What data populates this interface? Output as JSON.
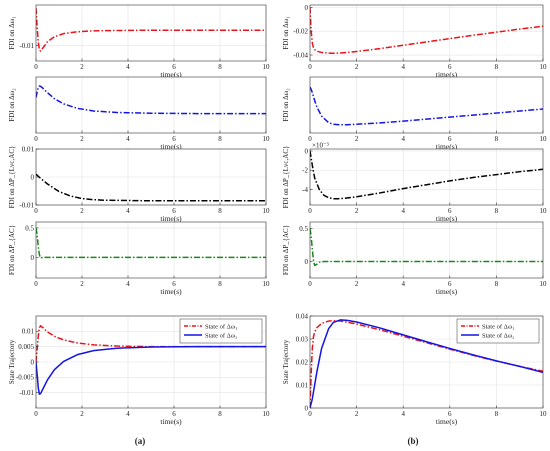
{
  "captions": {
    "left": "(a)",
    "right": "(b)"
  },
  "charts": [
    {
      "id": "a1",
      "type": "line",
      "xlabel": "time(s)",
      "ylabel": "FDI on Δω₁",
      "xlim": [
        0,
        10
      ],
      "ylim": [
        -0.015,
        0.003
      ],
      "xticks": [
        "0",
        "2",
        "4",
        "6",
        "8",
        "10"
      ],
      "xtick_values": [
        0,
        2,
        4,
        6,
        8,
        10
      ],
      "yticks": [
        "-0.01"
      ],
      "ytick_values": [
        -0.01
      ],
      "exponent": "",
      "grid": true,
      "series": [
        {
          "color": "#e8141b",
          "dash": "dashdot",
          "x": [
            0,
            0.05,
            0.1,
            0.15,
            0.2,
            0.3,
            0.5,
            0.8,
            1.2,
            1.8,
            2.5,
            3.5,
            5,
            7,
            10
          ],
          "y": [
            0.002,
            -0.004,
            -0.009,
            -0.0115,
            -0.0118,
            -0.0108,
            -0.0088,
            -0.0072,
            -0.0062,
            -0.0056,
            -0.0053,
            -0.0052,
            -0.0051,
            -0.0051,
            -0.0051
          ]
        }
      ],
      "legend": []
    },
    {
      "id": "b1",
      "type": "line",
      "xlabel": "time(s)",
      "ylabel": "FDI on Δω₁",
      "xlim": [
        0,
        10
      ],
      "ylim": [
        -0.045,
        0.002
      ],
      "xticks": [
        "0",
        "2",
        "4",
        "6",
        "8",
        "10"
      ],
      "xtick_values": [
        0,
        2,
        4,
        6,
        8,
        10
      ],
      "yticks": [
        "-0.04",
        "-0.02",
        "0"
      ],
      "ytick_values": [
        -0.04,
        -0.02,
        0
      ],
      "exponent": "",
      "grid": true,
      "series": [
        {
          "color": "#e8141b",
          "dash": "dashdot",
          "x": [
            0,
            0.05,
            0.1,
            0.15,
            0.2,
            0.3,
            0.5,
            0.8,
            1.0,
            1.3,
            1.6,
            2,
            3,
            4,
            5,
            6,
            7,
            8,
            9,
            10
          ],
          "y": [
            0,
            -0.02,
            -0.03,
            -0.034,
            -0.0355,
            -0.0368,
            -0.0378,
            -0.0384,
            -0.0385,
            -0.0383,
            -0.0378,
            -0.037,
            -0.0346,
            -0.0318,
            -0.029,
            -0.0262,
            -0.0234,
            -0.0208,
            -0.0182,
            -0.0158
          ]
        }
      ],
      "legend": []
    },
    {
      "id": "a2",
      "type": "line",
      "xlabel": "time(s)",
      "ylabel": "FDI on Δω₂",
      "xlim": [
        0,
        10
      ],
      "ylim": [
        -0.003,
        0.012
      ],
      "xticks": [
        "0",
        "2",
        "4",
        "6",
        "8",
        "10"
      ],
      "xtick_values": [
        0,
        2,
        4,
        6,
        8,
        10
      ],
      "yticks": [],
      "ytick_values": [],
      "exponent": "",
      "grid": true,
      "series": [
        {
          "color": "#1414e6",
          "dash": "dashdot",
          "x": [
            0,
            0.05,
            0.1,
            0.15,
            0.2,
            0.3,
            0.5,
            0.8,
            1.2,
            1.8,
            2.5,
            3.5,
            5,
            7,
            10
          ],
          "y": [
            0.0065,
            0.008,
            0.0092,
            0.0096,
            0.0095,
            0.009,
            0.0078,
            0.0062,
            0.0048,
            0.0036,
            0.0029,
            0.0025,
            0.0023,
            0.0022,
            0.0022
          ]
        }
      ],
      "legend": []
    },
    {
      "id": "b2",
      "type": "line",
      "xlabel": "time(s)",
      "ylabel": "FDI on Δω₂",
      "xlim": [
        0,
        10
      ],
      "ylim": [
        -0.045,
        0.005
      ],
      "xticks": [
        "0",
        "2",
        "4",
        "6",
        "8",
        "10"
      ],
      "xtick_values": [
        0,
        2,
        4,
        6,
        8,
        10
      ],
      "yticks": [],
      "ytick_values": [],
      "exponent": "",
      "grid": true,
      "series": [
        {
          "color": "#1414e6",
          "dash": "dashdot",
          "x": [
            0,
            0.05,
            0.1,
            0.2,
            0.3,
            0.5,
            0.8,
            1.0,
            1.3,
            1.6,
            2,
            3,
            4,
            5,
            6,
            7,
            8,
            9,
            10
          ],
          "y": [
            -0.004,
            -0.006,
            -0.009,
            -0.016,
            -0.022,
            -0.03,
            -0.0358,
            -0.0372,
            -0.0377,
            -0.0376,
            -0.0372,
            -0.036,
            -0.0344,
            -0.0326,
            -0.0308,
            -0.029,
            -0.0272,
            -0.0254,
            -0.0236
          ]
        }
      ],
      "legend": []
    },
    {
      "id": "a3",
      "type": "line",
      "xlabel": "time(s)",
      "ylabel": "FDI on ΔP_{Lvc,AC}",
      "xlim": [
        0,
        10
      ],
      "ylim": [
        -0.01,
        0.01
      ],
      "xticks": [
        "0",
        "2",
        "4",
        "6",
        "8",
        "10"
      ],
      "xtick_values": [
        0,
        2,
        4,
        6,
        8,
        10
      ],
      "yticks": [
        "-0.01",
        "0",
        "0.01"
      ],
      "ytick_values": [
        -0.01,
        0,
        0.01
      ],
      "exponent": "",
      "grid": true,
      "series": [
        {
          "color": "#000000",
          "dash": "dashdot",
          "x": [
            0,
            0.2,
            0.5,
            1.0,
            1.5,
            2,
            2.5,
            3,
            4,
            5,
            6,
            8,
            10
          ],
          "y": [
            0.001,
            -0.0005,
            -0.0025,
            -0.0052,
            -0.0068,
            -0.0077,
            -0.0081,
            -0.0083,
            -0.0084,
            -0.0085,
            -0.0085,
            -0.0085,
            -0.0085
          ]
        }
      ],
      "legend": []
    },
    {
      "id": "b3",
      "type": "line",
      "xlabel": "time(s)",
      "ylabel": "FDI on ΔP_{Lvc,AC}",
      "xlim": [
        0,
        10
      ],
      "ylim": [
        -5.6,
        0.2
      ],
      "xticks": [
        "0",
        "2",
        "4",
        "6",
        "8",
        "10"
      ],
      "xtick_values": [
        0,
        2,
        4,
        6,
        8,
        10
      ],
      "yticks": [
        "-4",
        "-2",
        "0"
      ],
      "ytick_values": [
        -4,
        -2,
        0
      ],
      "exponent": "×10⁻³",
      "grid": true,
      "series": [
        {
          "color": "#000000",
          "dash": "dashdot",
          "x": [
            0,
            0.1,
            0.2,
            0.4,
            0.6,
            0.8,
            1.0,
            1.2,
            1.5,
            2,
            3,
            4,
            5,
            6,
            7,
            8,
            9,
            10
          ],
          "y": [
            0,
            -1.5,
            -2.8,
            -4.0,
            -4.6,
            -4.85,
            -4.95,
            -4.95,
            -4.9,
            -4.75,
            -4.35,
            -3.9,
            -3.5,
            -3.1,
            -2.75,
            -2.45,
            -2.15,
            -1.9
          ]
        }
      ],
      "legend": []
    },
    {
      "id": "a4",
      "type": "line",
      "xlabel": "time(s)",
      "ylabel": "FDI on ΔP_{AC}",
      "xlim": [
        0,
        10
      ],
      "ylim": [
        -0.35,
        0.6
      ],
      "xticks": [
        "0",
        "2",
        "4",
        "6",
        "8",
        "10"
      ],
      "xtick_values": [
        0,
        2,
        4,
        6,
        8,
        10
      ],
      "yticks": [
        "0",
        "0.5"
      ],
      "ytick_values": [
        0,
        0.5
      ],
      "exponent": "",
      "grid": true,
      "series": [
        {
          "color": "#178a17",
          "dash": "dashdot",
          "x": [
            0,
            0.05,
            0.1,
            0.15,
            0.2,
            0.25,
            0.3,
            0.5,
            1,
            2,
            4,
            6,
            8,
            10
          ],
          "y": [
            0.5,
            0.38,
            0.18,
            0.04,
            -0.01,
            -0.005,
            0,
            0,
            0,
            0,
            0,
            0,
            0,
            0
          ]
        }
      ],
      "legend": []
    },
    {
      "id": "b4",
      "type": "line",
      "xlabel": "time(s)",
      "ylabel": "FDI on ΔP_{AC}",
      "xlim": [
        0,
        10
      ],
      "ylim": [
        -0.25,
        0.6
      ],
      "xticks": [
        "0",
        "2",
        "4",
        "6",
        "8",
        "10"
      ],
      "xtick_values": [
        0,
        2,
        4,
        6,
        8,
        10
      ],
      "yticks": [
        "0",
        "0.5"
      ],
      "ytick_values": [
        0,
        0.5
      ],
      "exponent": "",
      "grid": true,
      "series": [
        {
          "color": "#178a17",
          "dash": "dashdot",
          "x": [
            0,
            0.05,
            0.1,
            0.15,
            0.2,
            0.3,
            0.4,
            0.6,
            1,
            2,
            4,
            6,
            8,
            10
          ],
          "y": [
            0.5,
            0.38,
            0.18,
            0.02,
            -0.06,
            -0.04,
            -0.01,
            0,
            0,
            0,
            0,
            0,
            0,
            0
          ]
        }
      ],
      "legend": []
    },
    {
      "id": "a5",
      "type": "line",
      "xlabel": "time(s)",
      "ylabel": "State Trajectory",
      "xlim": [
        0,
        10
      ],
      "ylim": [
        -0.015,
        0.015
      ],
      "xticks": [
        "0",
        "2",
        "4",
        "6",
        "8",
        "10"
      ],
      "xtick_values": [
        0,
        2,
        4,
        6,
        8,
        10
      ],
      "yticks": [
        "-0.01",
        "-0.005",
        "0",
        "0.005",
        "0.01"
      ],
      "ytick_values": [
        -0.01,
        -0.005,
        0,
        0.005,
        0.01
      ],
      "exponent": "",
      "grid": true,
      "series": [
        {
          "color": "#e8141b",
          "dash": "dashdot",
          "x": [
            0,
            0.05,
            0.1,
            0.15,
            0.2,
            0.3,
            0.5,
            0.8,
            1.2,
            1.8,
            2.5,
            3.5,
            5,
            7,
            10
          ],
          "y": [
            0.0,
            0.004,
            0.0085,
            0.0112,
            0.0118,
            0.0112,
            0.0098,
            0.0084,
            0.0072,
            0.0062,
            0.0056,
            0.0052,
            0.005,
            0.005,
            0.005
          ]
        },
        {
          "color": "#1414e6",
          "dash": "solid",
          "x": [
            0,
            0.05,
            0.1,
            0.15,
            0.2,
            0.3,
            0.5,
            0.8,
            1.2,
            1.8,
            2.5,
            3.5,
            5,
            7,
            10
          ],
          "y": [
            0.0,
            -0.004,
            -0.0085,
            -0.0105,
            -0.0103,
            -0.0088,
            -0.0058,
            -0.0025,
            0.0002,
            0.0024,
            0.0037,
            0.0045,
            0.0049,
            0.005,
            0.005
          ]
        }
      ],
      "legend": [
        {
          "label": "State of Δω₁",
          "color": "#e8141b",
          "dash": "dashdot"
        },
        {
          "label": "State of Δω₂",
          "color": "#1414e6",
          "dash": "solid"
        }
      ]
    },
    {
      "id": "b5",
      "type": "line",
      "xlabel": "time(s)",
      "ylabel": "State Trajectory",
      "xlim": [
        0,
        10
      ],
      "ylim": [
        0,
        0.04
      ],
      "xticks": [
        "0",
        "2",
        "4",
        "6",
        "8",
        "10"
      ],
      "xtick_values": [
        0,
        2,
        4,
        6,
        8,
        10
      ],
      "yticks": [
        "0",
        "0.01",
        "0.02",
        "0.03",
        "0.04"
      ],
      "ytick_values": [
        0,
        0.01,
        0.02,
        0.03,
        0.04
      ],
      "exponent": "",
      "grid": true,
      "series": [
        {
          "color": "#e8141b",
          "dash": "dashdot",
          "x": [
            0,
            0.05,
            0.1,
            0.15,
            0.2,
            0.3,
            0.5,
            0.8,
            1.0,
            1.3,
            1.6,
            2,
            3,
            4,
            5,
            6,
            7,
            8,
            9,
            10
          ],
          "y": [
            0,
            0.015,
            0.026,
            0.031,
            0.033,
            0.035,
            0.0368,
            0.0378,
            0.038,
            0.0378,
            0.0373,
            0.0365,
            0.034,
            0.0312,
            0.0284,
            0.0256,
            0.0229,
            0.0204,
            0.0181,
            0.016
          ]
        },
        {
          "color": "#1414e6",
          "dash": "solid",
          "x": [
            0,
            0.05,
            0.1,
            0.2,
            0.3,
            0.5,
            0.8,
            1.0,
            1.3,
            1.6,
            2,
            3,
            4,
            5,
            6,
            7,
            8,
            9,
            10
          ],
          "y": [
            0,
            0.002,
            0.004,
            0.01,
            0.016,
            0.026,
            0.0345,
            0.0372,
            0.0383,
            0.0381,
            0.0374,
            0.0348,
            0.0318,
            0.0288,
            0.0259,
            0.0231,
            0.0205,
            0.0181,
            0.0155
          ]
        }
      ],
      "legend": [
        {
          "label": "State of Δω₁",
          "color": "#e8141b",
          "dash": "dashdot"
        },
        {
          "label": "State of Δω₂",
          "color": "#1414e6",
          "dash": "solid"
        }
      ]
    }
  ]
}
